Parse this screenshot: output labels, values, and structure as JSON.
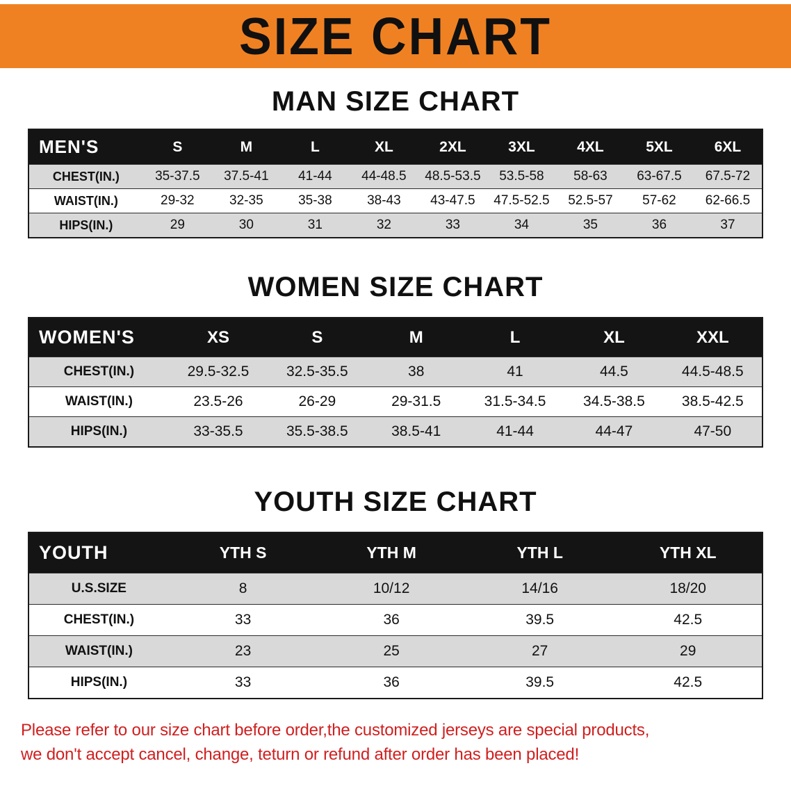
{
  "banner": {
    "title": "SIZE CHART"
  },
  "sections": {
    "men": {
      "heading": "MAN SIZE CHART"
    },
    "women": {
      "heading": "WOMEN SIZE CHART"
    },
    "youth": {
      "heading": "YOUTH SIZE CHART"
    }
  },
  "tables": {
    "men": {
      "header": [
        "MEN'S",
        "S",
        "M",
        "L",
        "XL",
        "2XL",
        "3XL",
        "4XL",
        "5XL",
        "6XL"
      ],
      "rows": [
        [
          "CHEST(IN.)",
          "35-37.5",
          "37.5-41",
          "41-44",
          "44-48.5",
          "48.5-53.5",
          "53.5-58",
          "58-63",
          "63-67.5",
          "67.5-72"
        ],
        [
          "WAIST(IN.)",
          "29-32",
          "32-35",
          "35-38",
          "38-43",
          "43-47.5",
          "47.5-52.5",
          "52.5-57",
          "57-62",
          "62-66.5"
        ],
        [
          "HIPS(IN.)",
          "29",
          "30",
          "31",
          "32",
          "33",
          "34",
          "35",
          "36",
          "37"
        ]
      ]
    },
    "women": {
      "header": [
        "WOMEN'S",
        "XS",
        "S",
        "M",
        "L",
        "XL",
        "XXL"
      ],
      "rows": [
        [
          "CHEST(IN.)",
          "29.5-32.5",
          "32.5-35.5",
          "38",
          "41",
          "44.5",
          "44.5-48.5"
        ],
        [
          "WAIST(IN.)",
          "23.5-26",
          "26-29",
          "29-31.5",
          "31.5-34.5",
          "34.5-38.5",
          "38.5-42.5"
        ],
        [
          "HIPS(IN.)",
          "33-35.5",
          "35.5-38.5",
          "38.5-41",
          "41-44",
          "44-47",
          "47-50"
        ]
      ]
    },
    "youth": {
      "header": [
        "YOUTH",
        "YTH S",
        "YTH M",
        "YTH L",
        "YTH XL"
      ],
      "rows": [
        [
          "U.S.SIZE",
          "8",
          "10/12",
          "14/16",
          "18/20"
        ],
        [
          "CHEST(IN.)",
          "33",
          "36",
          "39.5",
          "42.5"
        ],
        [
          "WAIST(IN.)",
          "23",
          "25",
          "27",
          "29"
        ],
        [
          "HIPS(IN.)",
          "33",
          "36",
          "39.5",
          "42.5"
        ]
      ]
    }
  },
  "disclaimer": {
    "line1": "Please refer to our size chart before order,the customized jerseys are special products,",
    "line2": "we don't accept cancel, change, teturn or refund after order has been placed!"
  },
  "colors": {
    "banner_bg": "#f08122",
    "header_bg": "#141414",
    "stripe": "#d9d9d9",
    "disclaimer_red": "#d01f1f",
    "title_black": "#101010"
  }
}
